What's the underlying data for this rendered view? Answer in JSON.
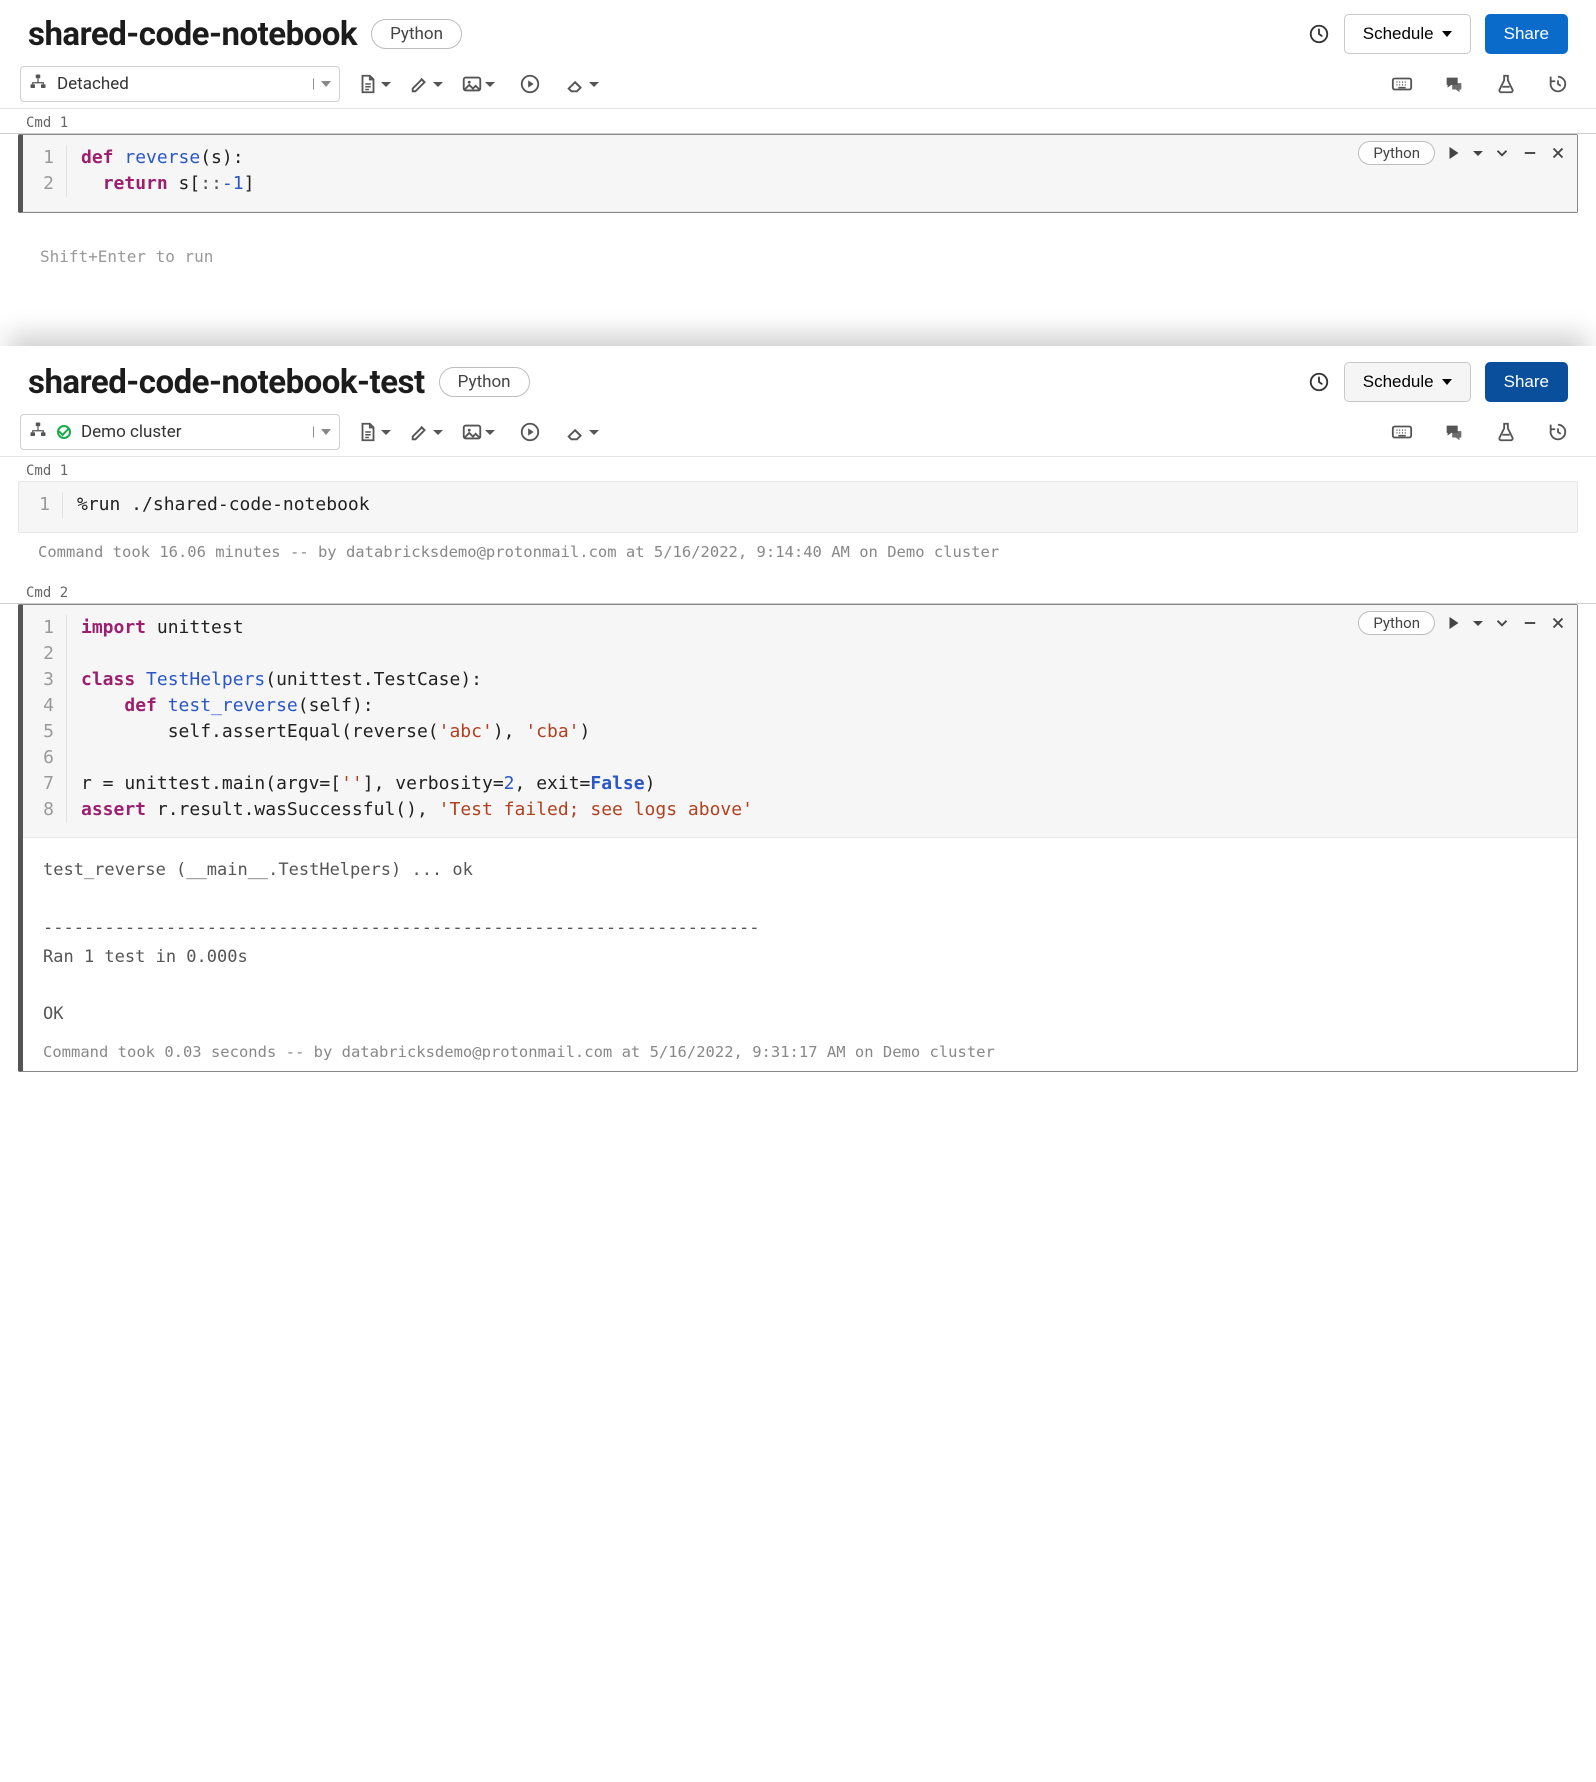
{
  "notebook1": {
    "title": "shared-code-notebook",
    "language_badge": "Python",
    "schedule_label": "Schedule",
    "share_label": "Share",
    "cluster_status": "Detached",
    "cmd1_label": "Cmd 1",
    "cell1_lang": "Python",
    "cell1_hint": "Shift+Enter to run",
    "cell1_code_tokens": [
      [
        {
          "t": "def ",
          "c": "kw"
        },
        {
          "t": "reverse",
          "c": "fn"
        },
        {
          "t": "(s):",
          "c": ""
        }
      ],
      [
        {
          "t": "  ",
          "c": ""
        },
        {
          "t": "return",
          "c": "kw"
        },
        {
          "t": " s[",
          "c": ""
        },
        {
          "t": ":",
          "c": "op"
        },
        {
          "t": ":",
          "c": "op"
        },
        {
          "t": "-1",
          "c": "num"
        },
        {
          "t": "]",
          "c": ""
        }
      ]
    ]
  },
  "notebook2": {
    "title": "shared-code-notebook-test",
    "language_badge": "Python",
    "schedule_label": "Schedule",
    "share_label": "Share",
    "cluster_status": "Demo cluster",
    "cluster_connected": true,
    "cmd1_label": "Cmd 1",
    "cmd2_label": "Cmd 2",
    "cell1_code_tokens": [
      [
        {
          "t": "%run ./shared-code-notebook",
          "c": ""
        }
      ]
    ],
    "cell1_meta": "Command took 16.06 minutes -- by databricksdemo@protonmail.com at 5/16/2022, 9:14:40 AM on Demo cluster",
    "cell2_lang": "Python",
    "cell2_code_tokens": [
      [
        {
          "t": "import",
          "c": "kw"
        },
        {
          "t": " unittest",
          "c": ""
        }
      ],
      [],
      [
        {
          "t": "class ",
          "c": "kw"
        },
        {
          "t": "TestHelpers",
          "c": "cls"
        },
        {
          "t": "(unittest.TestCase):",
          "c": ""
        }
      ],
      [
        {
          "t": "    ",
          "c": ""
        },
        {
          "t": "def ",
          "c": "kw"
        },
        {
          "t": "test_reverse",
          "c": "fn"
        },
        {
          "t": "(self):",
          "c": ""
        }
      ],
      [
        {
          "t": "        self.assertEqual(reverse(",
          "c": ""
        },
        {
          "t": "'abc'",
          "c": "str"
        },
        {
          "t": "), ",
          "c": ""
        },
        {
          "t": "'cba'",
          "c": "str"
        },
        {
          "t": ")",
          "c": ""
        }
      ],
      [],
      [
        {
          "t": "r = unittest.main(argv=[",
          "c": ""
        },
        {
          "t": "''",
          "c": "str"
        },
        {
          "t": "], verbosity=",
          "c": ""
        },
        {
          "t": "2",
          "c": "num"
        },
        {
          "t": ", exit=",
          "c": ""
        },
        {
          "t": "False",
          "c": "bool"
        },
        {
          "t": ")",
          "c": ""
        }
      ],
      [
        {
          "t": "assert",
          "c": "kw"
        },
        {
          "t": " r.result.wasSuccessful(), ",
          "c": ""
        },
        {
          "t": "'Test failed; see logs above'",
          "c": "str"
        }
      ]
    ],
    "cell2_output": "test_reverse (__main__.TestHelpers) ... ok\n\n----------------------------------------------------------------------\nRan 1 test in 0.000s\n\nOK",
    "cell2_meta": "Command took 0.03 seconds -- by databricksdemo@protonmail.com at 5/16/2022, 9:31:17 AM on Demo cluster"
  },
  "colors": {
    "primary_button": "#0b6bcb",
    "primary_button_dark": "#0a4f9c",
    "keyword": "#9c1f6f",
    "function": "#2a56c6",
    "string": "#b04020",
    "code_bg": "#f6f6f6"
  }
}
